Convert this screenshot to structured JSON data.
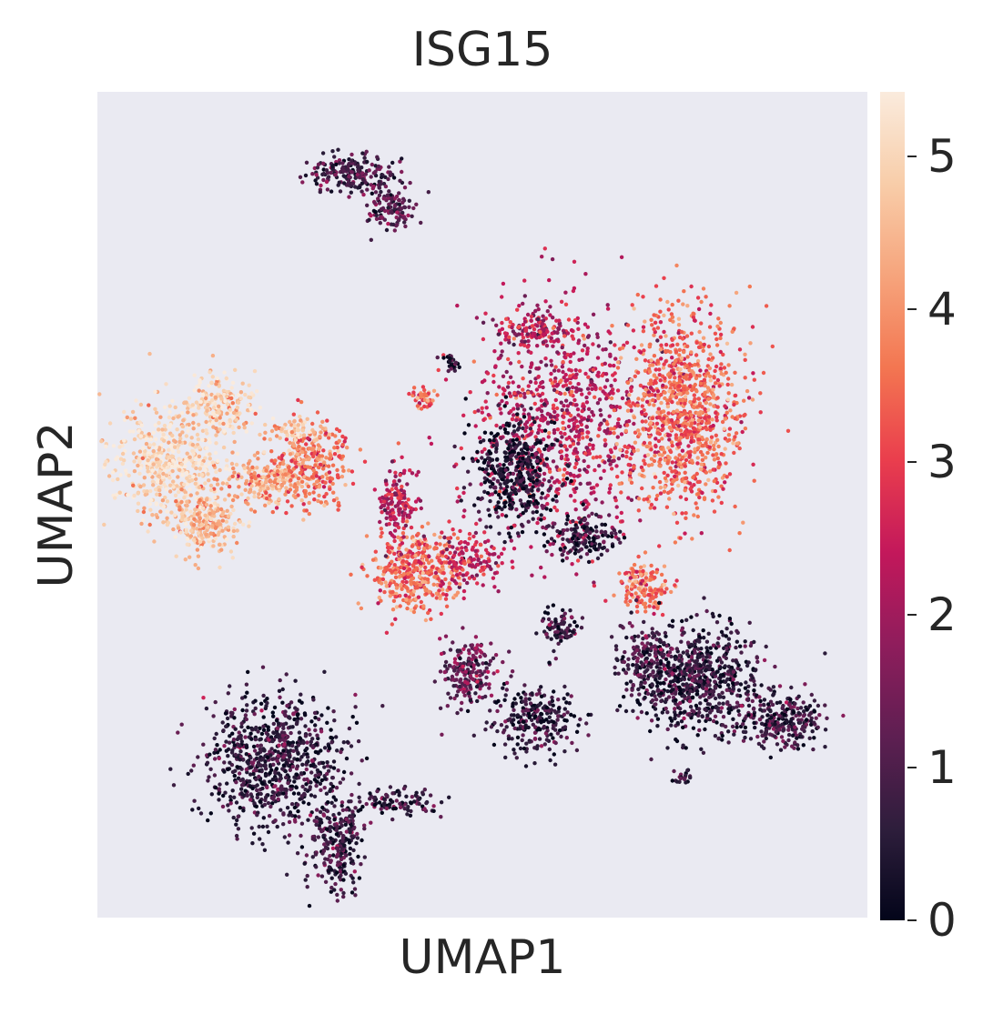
{
  "chart_data": {
    "type": "scatter",
    "title": "ISG15",
    "xlabel": "UMAP1",
    "ylabel": "UMAP2",
    "grid": false,
    "colorbar": {
      "label": "",
      "range": [
        0,
        5.42
      ],
      "ticks": [
        0,
        1,
        2,
        3,
        4,
        5
      ],
      "tick_labels": [
        "0",
        "1",
        "2",
        "3",
        "4",
        "5"
      ],
      "colormap": "rocket",
      "stops": [
        "#03051a",
        "#2e1e3c",
        "#5e1f52",
        "#8f1d5c",
        "#c3185b",
        "#ea3e4d",
        "#f37651",
        "#f6a47c",
        "#f8cda9",
        "#faebdd"
      ]
    },
    "xlim": [
      0,
      100
    ],
    "ylim": [
      0,
      100
    ],
    "clusters": [
      {
        "x": 9,
        "y": 45,
        "rx": 7,
        "ry": 6,
        "expr": 5.0,
        "n": 500
      },
      {
        "x": 16,
        "y": 38,
        "rx": 4,
        "ry": 3.5,
        "expr": 4.8,
        "n": 200
      },
      {
        "x": 14,
        "y": 52,
        "rx": 4,
        "ry": 3.5,
        "expr": 4.5,
        "n": 250
      },
      {
        "x": 22,
        "y": 47,
        "rx": 5,
        "ry": 2.5,
        "expr": 4.2,
        "n": 200
      },
      {
        "x": 28,
        "y": 45,
        "rx": 4.5,
        "ry": 5,
        "expr": 3.6,
        "n": 260
      },
      {
        "x": 26,
        "y": 41,
        "rx": 3,
        "ry": 1.2,
        "expr": 4.5,
        "n": 60
      },
      {
        "x": 60,
        "y": 40,
        "rx": 10,
        "ry": 13,
        "expr": 2.3,
        "n": 900
      },
      {
        "x": 76,
        "y": 39,
        "rx": 7,
        "ry": 11,
        "expr": 3.4,
        "n": 1000
      },
      {
        "x": 71,
        "y": 60,
        "rx": 3,
        "ry": 2.5,
        "expr": 3.6,
        "n": 150
      },
      {
        "x": 57,
        "y": 29,
        "rx": 4,
        "ry": 2,
        "expr": 2.3,
        "n": 120
      },
      {
        "x": 54,
        "y": 46,
        "rx": 5,
        "ry": 6,
        "expr": 0.4,
        "n": 400
      },
      {
        "x": 63,
        "y": 54,
        "rx": 4,
        "ry": 2.2,
        "expr": 0.6,
        "n": 150
      },
      {
        "x": 41,
        "y": 58,
        "rx": 5,
        "ry": 4.5,
        "expr": 3.5,
        "n": 400
      },
      {
        "x": 39,
        "y": 50,
        "rx": 2.5,
        "ry": 4,
        "expr": 2.3,
        "n": 150
      },
      {
        "x": 48,
        "y": 57,
        "rx": 4,
        "ry": 3,
        "expr": 2.5,
        "n": 150
      },
      {
        "x": 48,
        "y": 70,
        "rx": 3,
        "ry": 4,
        "expr": 1.3,
        "n": 200
      },
      {
        "x": 57,
        "y": 76,
        "rx": 5,
        "ry": 4,
        "expr": 0.6,
        "n": 250
      },
      {
        "x": 60,
        "y": 65,
        "rx": 2,
        "ry": 2,
        "expr": 0.7,
        "n": 80
      },
      {
        "x": 78,
        "y": 71,
        "rx": 7,
        "ry": 6,
        "expr": 0.6,
        "n": 700
      },
      {
        "x": 89,
        "y": 76,
        "rx": 5,
        "ry": 3,
        "expr": 0.7,
        "n": 250
      },
      {
        "x": 71,
        "y": 69,
        "rx": 3,
        "ry": 5,
        "expr": 0.9,
        "n": 150
      },
      {
        "x": 23,
        "y": 81,
        "rx": 8,
        "ry": 7,
        "expr": 0.6,
        "n": 800
      },
      {
        "x": 31,
        "y": 91,
        "rx": 3,
        "ry": 6,
        "expr": 0.7,
        "n": 250
      },
      {
        "x": 39,
        "y": 86,
        "rx": 5,
        "ry": 1.5,
        "expr": 0.6,
        "n": 100
      },
      {
        "x": 33,
        "y": 10,
        "rx": 5,
        "ry": 2,
        "expr": 0.9,
        "n": 200
      },
      {
        "x": 38,
        "y": 14,
        "rx": 3,
        "ry": 2.5,
        "expr": 1.0,
        "n": 120
      },
      {
        "x": 42,
        "y": 37,
        "rx": 1.5,
        "ry": 1.2,
        "expr": 3.5,
        "n": 50
      },
      {
        "x": 46,
        "y": 33,
        "rx": 1,
        "ry": 1,
        "expr": 0.3,
        "n": 30
      },
      {
        "x": 76,
        "y": 83,
        "rx": 1,
        "ry": 1,
        "expr": 0.8,
        "n": 20
      }
    ]
  }
}
